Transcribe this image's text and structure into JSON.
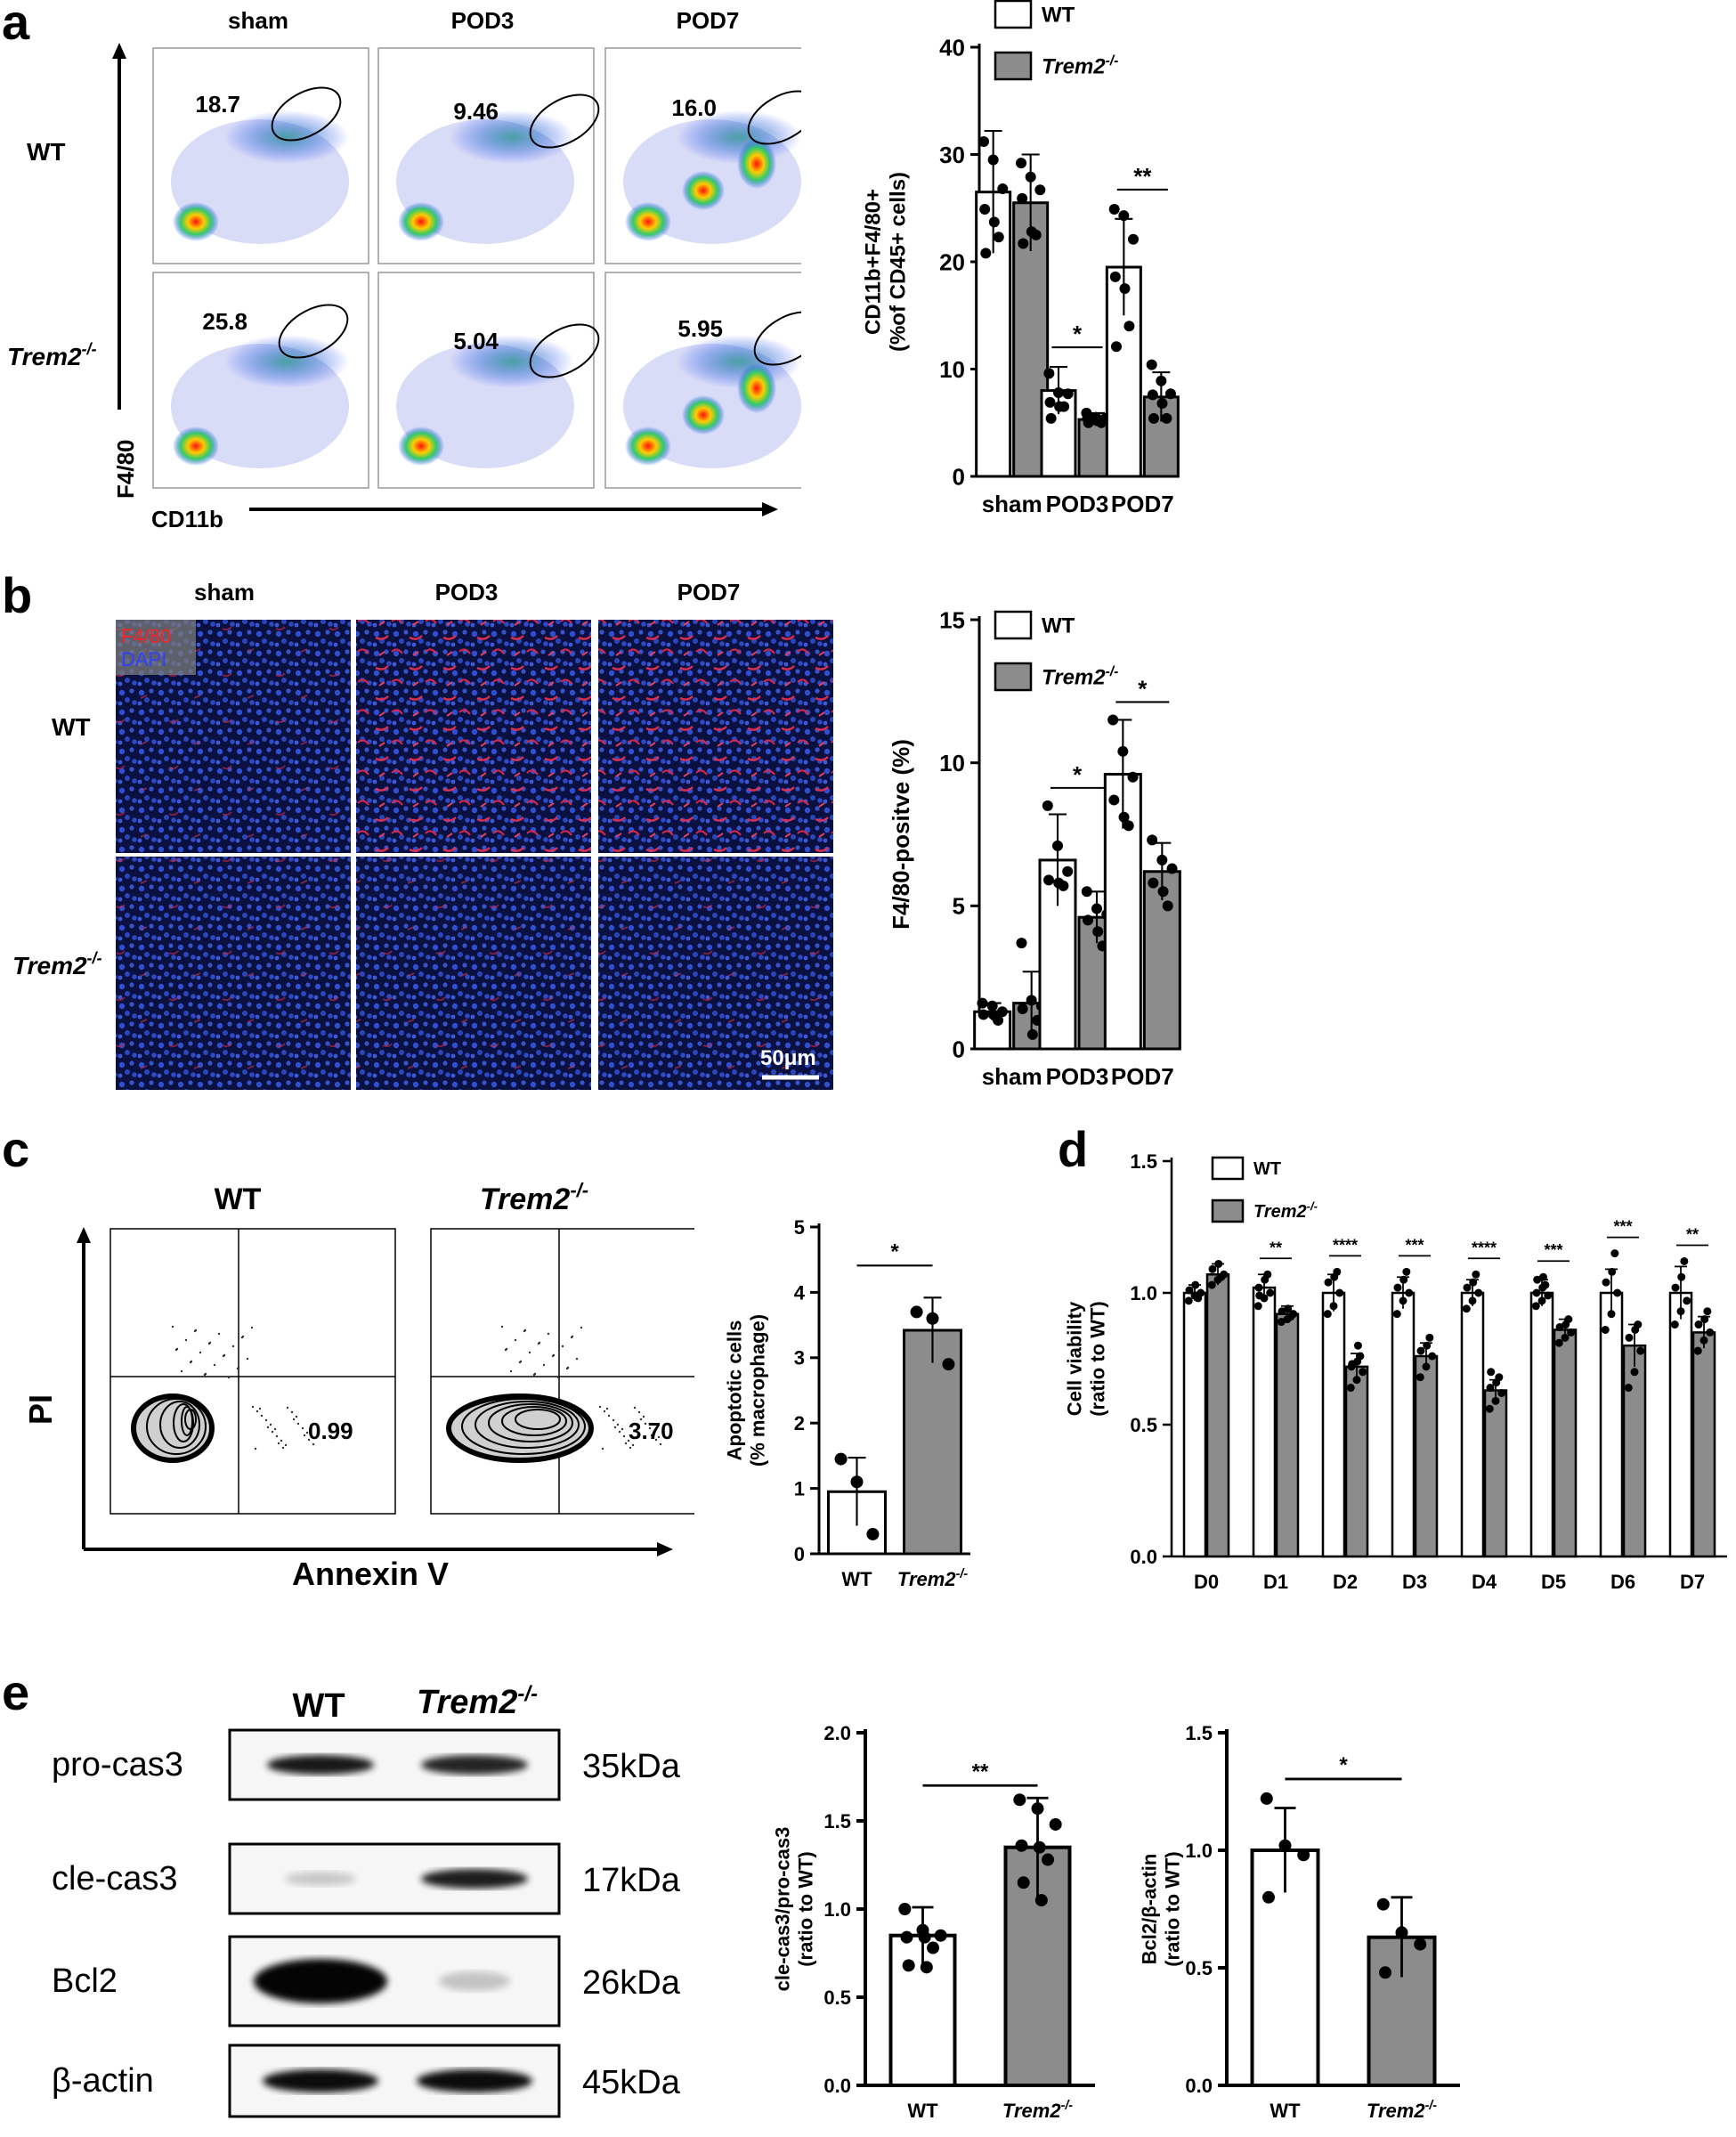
{
  "panels": {
    "a": {
      "label": "a",
      "col_headers": [
        "sham",
        "POD3",
        "POD7"
      ],
      "row_headers": [
        "WT",
        "Trem2"
      ],
      "row_sup": "-/-",
      "y_axis": "F4/80",
      "x_axis": "CD11b",
      "gate_values": [
        [
          "18.7",
          "9.46",
          "16.0"
        ],
        [
          "25.8",
          "5.04",
          "5.95"
        ]
      ]
    },
    "b": {
      "label": "b",
      "col_headers": [
        "sham",
        "POD3",
        "POD7"
      ],
      "row_headers": [
        "WT",
        "Trem2"
      ],
      "row_sup": "-/-",
      "legend_red": "F4/80",
      "legend_blue": "DAPI",
      "scale_bar": "50μm"
    },
    "c": {
      "label": "c",
      "col_headers": [
        "WT",
        "Trem2"
      ],
      "col_sup": "-/-",
      "y_axis": "PI",
      "x_axis": "Annexin V",
      "quad_values": [
        "0.99",
        "3.70"
      ]
    },
    "d": {
      "label": "d"
    },
    "e": {
      "label": "e",
      "lane_headers": [
        "WT",
        "Trem2"
      ],
      "lane_sup": "-/-",
      "blots": [
        {
          "protein": "pro-cas3",
          "size": "35kDa"
        },
        {
          "protein": "cle-cas3",
          "size": "17kDa"
        },
        {
          "protein": "Bcl2",
          "size": "26kDa"
        },
        {
          "protein": "β-actin",
          "size": "45kDa"
        }
      ]
    }
  },
  "chart_data": [
    {
      "id": "a-bar",
      "type": "bar",
      "categories": [
        "sham",
        "POD3",
        "POD7"
      ],
      "series": [
        {
          "name": "WT",
          "values": [
            26.5,
            8.0,
            19.5
          ],
          "errors": [
            5.7,
            2.2,
            4.5
          ]
        },
        {
          "name": "Trem2-/-",
          "values": [
            25.5,
            5.3,
            7.4
          ],
          "errors": [
            4.5,
            0.6,
            2.3
          ]
        }
      ],
      "points": [
        [
          [
            31.2,
            29.5,
            26.8,
            24.9,
            23.7,
            22.3,
            20.8
          ],
          [
            29.2,
            27.9,
            26.7,
            25.9,
            22.8,
            22.5,
            21.7
          ]
        ],
        [
          [
            9.6,
            7.8,
            7.7,
            6.9,
            6.5,
            6.5,
            5.4
          ],
          [
            5.9,
            5.5,
            5.4,
            5.4,
            5.2,
            5.0,
            5.0
          ]
        ],
        [
          [
            24.9,
            24.3,
            22.1,
            18.6,
            17.5,
            14.0,
            12.1
          ],
          [
            10.4,
            8.9,
            7.7,
            7.6,
            6.8,
            5.4,
            5.4
          ]
        ]
      ],
      "legend": [
        "WT",
        "Trem2"
      ],
      "legend_sup": "-/-",
      "ylabel_lines": [
        "CD11b+F4/80+",
        "(%of CD45+ cells)"
      ],
      "ylim": [
        0,
        40
      ],
      "yticks": [
        "0",
        "10",
        "20",
        "30",
        "40"
      ],
      "significance": [
        "*",
        "**"
      ]
    },
    {
      "id": "b-bar",
      "type": "bar",
      "categories": [
        "sham",
        "POD3",
        "POD7"
      ],
      "series": [
        {
          "name": "WT",
          "values": [
            1.3,
            6.6,
            9.6
          ],
          "errors": [
            0.3,
            1.6,
            1.9
          ]
        },
        {
          "name": "Trem2-/-",
          "values": [
            1.6,
            4.6,
            6.2
          ],
          "errors": [
            1.1,
            0.9,
            1.0
          ]
        }
      ],
      "points": [
        [
          [
            1.6,
            1.5,
            1.3,
            1.2,
            1.2,
            1.0
          ],
          [
            3.7,
            1.7,
            1.5,
            1.4,
            0.5,
            1.0
          ]
        ],
        [
          [
            8.5,
            7.1,
            6.2,
            5.9,
            5.8,
            5.7
          ],
          [
            5.5,
            4.9,
            4.7,
            4.5,
            4.1,
            3.6
          ]
        ],
        [
          [
            11.5,
            10.4,
            9.5,
            8.7,
            8.1,
            7.8
          ],
          [
            7.3,
            6.6,
            6.3,
            5.8,
            5.5,
            5.0
          ]
        ]
      ],
      "legend": [
        "WT",
        "Trem2"
      ],
      "legend_sup": "-/-",
      "ylabel_lines": [
        "F4/80-positve (%)"
      ],
      "ylim": [
        0,
        15
      ],
      "yticks": [
        "0",
        "5",
        "10",
        "15"
      ],
      "significance": [
        "*",
        "*"
      ]
    },
    {
      "id": "c-bar",
      "type": "bar",
      "categories": [
        "WT",
        "Trem2"
      ],
      "category_sup": "-/-",
      "values": [
        0.95,
        3.42
      ],
      "errors": [
        0.52,
        0.5
      ],
      "points": [
        [
          1.45,
          1.1,
          0.3
        ],
        [
          3.7,
          3.6,
          2.9
        ]
      ],
      "ylabel_lines": [
        "Apoptotic cells",
        "(% macrophage)"
      ],
      "ylim": [
        0,
        5
      ],
      "yticks": [
        "0",
        "1",
        "2",
        "3",
        "4",
        "5"
      ],
      "significance": [
        "*"
      ]
    },
    {
      "id": "d-bar",
      "type": "bar",
      "categories": [
        "D0",
        "D1",
        "D2",
        "D3",
        "D4",
        "D5",
        "D6",
        "D7"
      ],
      "series": [
        {
          "name": "WT",
          "values": [
            1.0,
            1.02,
            1.0,
            1.0,
            1.0,
            1.0,
            1.0,
            1.0
          ],
          "errors": [
            0.03,
            0.05,
            0.07,
            0.06,
            0.05,
            0.05,
            0.09,
            0.1
          ]
        },
        {
          "name": "Trem2-/-",
          "values": [
            1.07,
            0.92,
            0.72,
            0.76,
            0.63,
            0.86,
            0.8,
            0.85
          ],
          "errors": [
            0.04,
            0.03,
            0.05,
            0.05,
            0.04,
            0.04,
            0.08,
            0.06
          ]
        }
      ],
      "points": [
        [
          [
            0.97,
            0.99,
            1.0,
            1.01,
            1.03,
            0.98
          ],
          [
            1.03,
            1.05,
            1.07,
            1.09,
            1.11,
            1.06
          ]
        ],
        [
          [
            0.95,
            0.98,
            1.0,
            1.02,
            1.05,
            1.07,
            0.99
          ],
          [
            0.89,
            0.9,
            0.92,
            0.93,
            0.94,
            0.91
          ]
        ],
        [
          [
            0.92,
            0.95,
            1.0,
            1.04,
            1.06,
            1.08
          ],
          [
            0.64,
            0.67,
            0.7,
            0.72,
            0.74,
            0.76,
            0.73,
            0.8
          ]
        ],
        [
          [
            0.92,
            0.97,
            1.0,
            1.02,
            1.05,
            1.08
          ],
          [
            0.68,
            0.72,
            0.76,
            0.78,
            0.8,
            0.83
          ]
        ],
        [
          [
            0.94,
            0.97,
            1.0,
            1.02,
            1.04,
            1.07
          ],
          [
            0.56,
            0.59,
            0.62,
            0.64,
            0.66,
            0.68,
            0.7
          ]
        ],
        [
          [
            0.95,
            0.97,
            0.99,
            1.0,
            1.02,
            1.03,
            1.05,
            1.06
          ],
          [
            0.81,
            0.83,
            0.85,
            0.87,
            0.88,
            0.9
          ]
        ],
        [
          [
            0.86,
            0.92,
            1.0,
            1.04,
            1.08,
            1.15
          ],
          [
            0.64,
            0.7,
            0.78,
            0.83,
            0.86,
            0.88
          ]
        ],
        [
          [
            0.88,
            0.93,
            0.97,
            1.02,
            1.06,
            1.12
          ],
          [
            0.78,
            0.82,
            0.85,
            0.88,
            0.9,
            0.93
          ]
        ]
      ],
      "legend": [
        "WT",
        "Trem2"
      ],
      "legend_sup": "-/-",
      "ylabel_lines": [
        "Cell viability",
        "(ratio to WT)"
      ],
      "ylim": [
        0,
        1.5
      ],
      "yticks": [
        "0.0",
        "0.5",
        "1.0",
        "1.5"
      ],
      "significance": [
        "",
        "**",
        "****",
        "***",
        "****",
        "***",
        "***",
        "**"
      ]
    },
    {
      "id": "e-bar1",
      "type": "bar",
      "categories": [
        "WT",
        "Trem2"
      ],
      "category_sup": "-/-",
      "values": [
        0.85,
        1.35
      ],
      "errors": [
        0.16,
        0.28
      ],
      "points": [
        [
          1.0,
          0.88,
          0.85,
          0.84,
          0.84,
          0.78,
          0.68,
          0.67
        ],
        [
          1.62,
          1.57,
          1.48,
          1.36,
          1.35,
          1.28,
          1.15,
          1.05
        ]
      ],
      "ylabel_lines": [
        "cle-cas3/pro-cas3",
        "(ratio to WT)"
      ],
      "ylim": [
        0,
        2.0
      ],
      "yticks": [
        "0.0",
        "0.5",
        "1.0",
        "1.5",
        "2.0"
      ],
      "significance": [
        "**"
      ]
    },
    {
      "id": "e-bar2",
      "type": "bar",
      "categories": [
        "WT",
        "Trem2"
      ],
      "category_sup": "-/-",
      "values": [
        1.0,
        0.63
      ],
      "errors": [
        0.18,
        0.17
      ],
      "points": [
        [
          1.22,
          1.02,
          0.98,
          0.8
        ],
        [
          0.77,
          0.65,
          0.6,
          0.48
        ]
      ],
      "ylabel_lines": [
        "Bcl2/β-actin",
        "(ratio to WT)"
      ],
      "ylim": [
        0,
        1.5
      ],
      "yticks": [
        "0.0",
        "0.5",
        "1.0",
        "1.5"
      ],
      "significance": [
        "*"
      ]
    }
  ]
}
